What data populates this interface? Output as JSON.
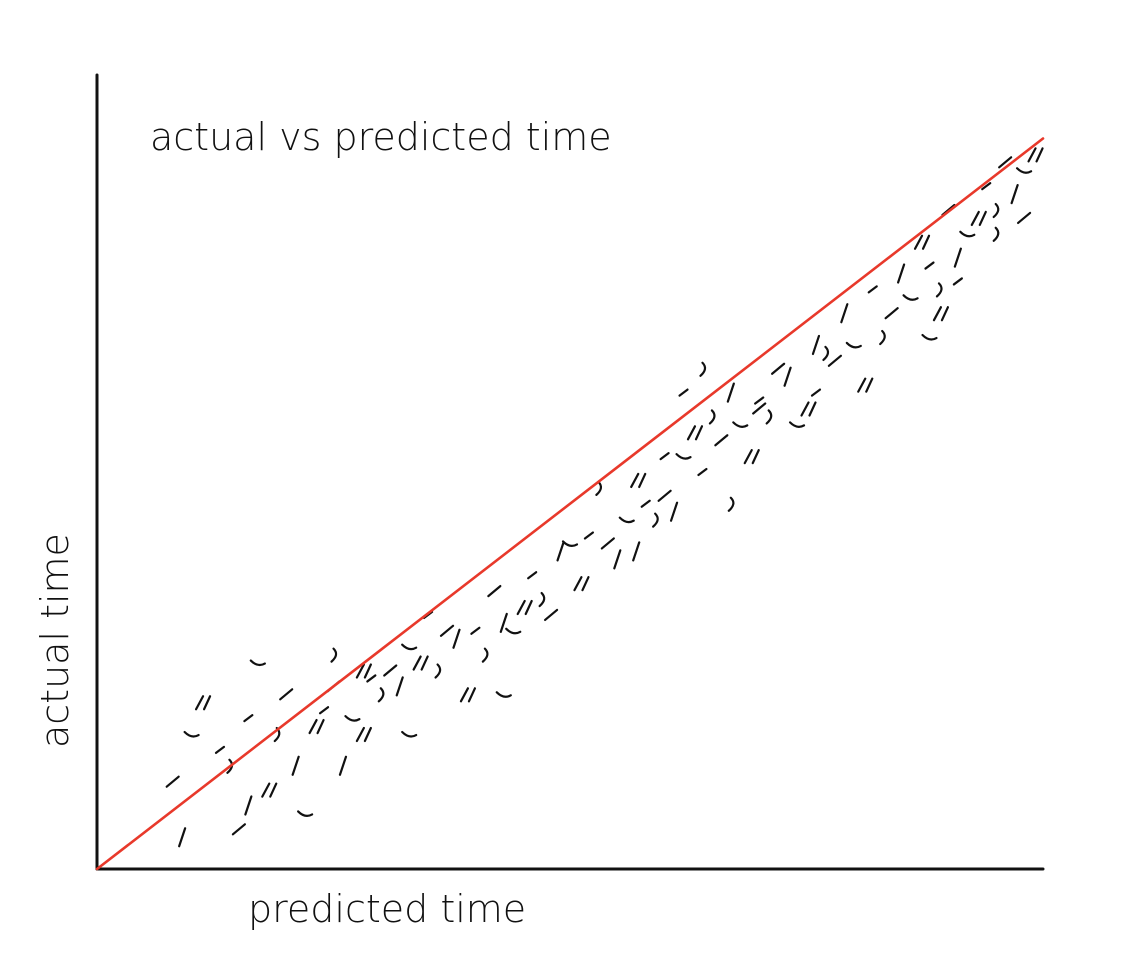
{
  "chart_data": {
    "type": "scatter",
    "title": "actual vs predicted time",
    "xlabel": "predicted time",
    "ylabel": "actual time",
    "xlim": [
      0,
      100
    ],
    "ylim": [
      0,
      100
    ],
    "grid": false,
    "ticks": false,
    "reference_line": {
      "from": [
        0,
        0
      ],
      "to": [
        100,
        92
      ],
      "color": "#e8392b"
    },
    "colors": {
      "axis": "#111111",
      "points": "#111111",
      "reference": "#e8392b"
    },
    "series": [
      {
        "points": [
          [
            8,
            11
          ],
          [
            9,
            4
          ],
          [
            10,
            17
          ],
          [
            11,
            21
          ],
          [
            13,
            15
          ],
          [
            14,
            13
          ],
          [
            15,
            5
          ],
          [
            16,
            8
          ],
          [
            17,
            26
          ],
          [
            18,
            10
          ],
          [
            16,
            19
          ],
          [
            19,
            17
          ],
          [
            20,
            22
          ],
          [
            21,
            13
          ],
          [
            22,
            7
          ],
          [
            23,
            18
          ],
          [
            24,
            20
          ],
          [
            25,
            27
          ],
          [
            25,
            23
          ],
          [
            26,
            13
          ],
          [
            27,
            19
          ],
          [
            28,
            17
          ],
          [
            29,
            24
          ],
          [
            30,
            22
          ],
          [
            31,
            25
          ],
          [
            32,
            23
          ],
          [
            33,
            28
          ],
          [
            34,
            26
          ],
          [
            35,
            32
          ],
          [
            36,
            25
          ],
          [
            37,
            30
          ],
          [
            38,
            29
          ],
          [
            33,
            17
          ],
          [
            39,
            22
          ],
          [
            40,
            30
          ],
          [
            41,
            27
          ],
          [
            42,
            35
          ],
          [
            43,
            31
          ],
          [
            44,
            30
          ],
          [
            45,
            33
          ],
          [
            46,
            37
          ],
          [
            47,
            34
          ],
          [
            48,
            32
          ],
          [
            49,
            40
          ],
          [
            50,
            41
          ],
          [
            51,
            36
          ],
          [
            52,
            42
          ],
          [
            53,
            48
          ],
          [
            54,
            41
          ],
          [
            55,
            39
          ],
          [
            56,
            44
          ],
          [
            57,
            49
          ],
          [
            58,
            46
          ],
          [
            59,
            44
          ],
          [
            60,
            47
          ],
          [
            61,
            45
          ],
          [
            62,
            52
          ],
          [
            63,
            55
          ],
          [
            64,
            50
          ],
          [
            65,
            57
          ],
          [
            66,
            54
          ],
          [
            67,
            60
          ],
          [
            68,
            56
          ],
          [
            69,
            52
          ],
          [
            70,
            59
          ],
          [
            71,
            57
          ],
          [
            72,
            63
          ],
          [
            73,
            62
          ],
          [
            74,
            56
          ],
          [
            75,
            58
          ],
          [
            76,
            60
          ],
          [
            77,
            65
          ],
          [
            78,
            64
          ],
          [
            79,
            70
          ],
          [
            80,
            66
          ],
          [
            81,
            61
          ],
          [
            82,
            73
          ],
          [
            83,
            67
          ],
          [
            84,
            70
          ],
          [
            85,
            75
          ],
          [
            86,
            72
          ],
          [
            87,
            79
          ],
          [
            88,
            76
          ],
          [
            89,
            73
          ],
          [
            90,
            83
          ],
          [
            91,
            77
          ],
          [
            92,
            80
          ],
          [
            93,
            82
          ],
          [
            94,
            86
          ],
          [
            95,
            83
          ],
          [
            96,
            89
          ],
          [
            97,
            85
          ],
          [
            98,
            88
          ],
          [
            99,
            90
          ],
          [
            62,
            60
          ],
          [
            67,
            46
          ],
          [
            70,
            58
          ],
          [
            76,
            66
          ],
          [
            88,
            67
          ],
          [
            89,
            70
          ],
          [
            91,
            74
          ],
          [
            95,
            80
          ],
          [
            98,
            82
          ],
          [
            57,
            40
          ],
          [
            43,
            22
          ],
          [
            28,
            25
          ],
          [
            60,
            52
          ],
          [
            64,
            63
          ]
        ]
      }
    ]
  }
}
